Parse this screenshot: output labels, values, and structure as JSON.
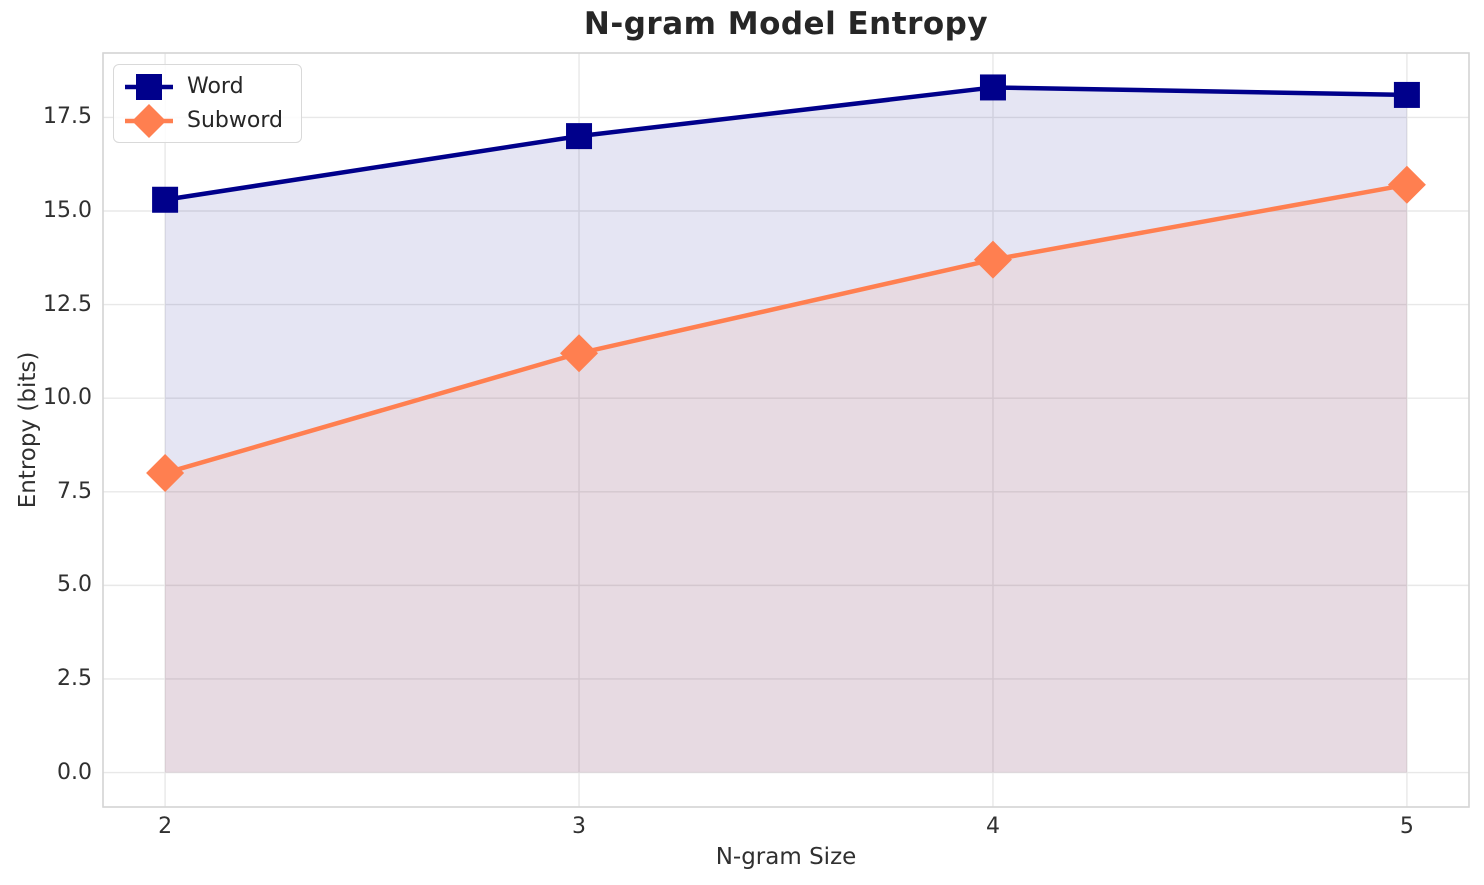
{
  "chart_data": {
    "type": "line",
    "title": "N-gram Model Entropy",
    "xlabel": "N-gram Size",
    "ylabel": "Entropy (bits)",
    "x": [
      2,
      3,
      4,
      5
    ],
    "series": [
      {
        "name": "Word",
        "color": "#00008B",
        "marker": "square",
        "values": [
          15.3,
          17.0,
          18.3,
          18.1
        ]
      },
      {
        "name": "Subword",
        "color": "#FF7F50",
        "marker": "diamond",
        "values": [
          8.0,
          11.2,
          13.7,
          15.7
        ]
      }
    ],
    "fill_to_zero": true,
    "fill_opacity": 0.1,
    "xticks": [
      2,
      3,
      4,
      5
    ],
    "xtick_labels": [
      "2",
      "3",
      "4",
      "5"
    ],
    "yticks": [
      0,
      2.5,
      5,
      7.5,
      10,
      12.5,
      15,
      17.5
    ],
    "ytick_labels": [
      "0.0",
      "2.5",
      "5.0",
      "7.5",
      "10.0",
      "12.5",
      "15.0",
      "17.5"
    ],
    "xlim": [
      1.85,
      5.15
    ],
    "ylim": [
      -0.92,
      19.22
    ],
    "grid": true,
    "legend": {
      "position": "upper-left",
      "entries": [
        "Word",
        "Subword"
      ]
    },
    "colors": {
      "grid": "#e8e8e8",
      "spine": "#d4d4d4",
      "text": "#303030",
      "title": "#262626",
      "background": "#ffffff"
    }
  }
}
